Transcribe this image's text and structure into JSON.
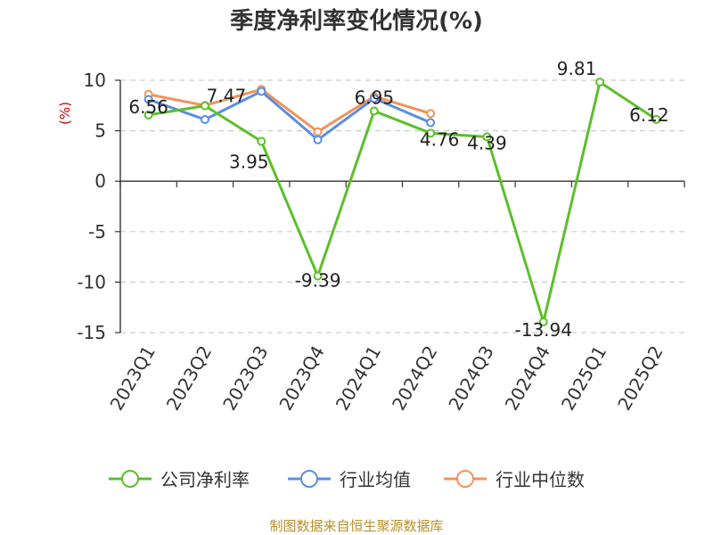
{
  "chart_data": {
    "type": "line",
    "title": "季度净利率变化情况(%)",
    "y_unit": "(%)",
    "categories": [
      "2023Q1",
      "2023Q2",
      "2023Q3",
      "2023Q4",
      "2024Q1",
      "2024Q2",
      "2024Q3",
      "2024Q4",
      "2025Q1",
      "2025Q2"
    ],
    "ylim": [
      -15,
      10
    ],
    "yticks": [
      10,
      5,
      0,
      -5,
      -10,
      -15
    ],
    "grid": true,
    "legend_position": "bottom",
    "series": [
      {
        "name": "公司净利率",
        "color": "#5cbf2a",
        "values": [
          6.56,
          7.47,
          3.95,
          -9.39,
          6.95,
          4.76,
          4.39,
          -13.94,
          9.81,
          6.12
        ],
        "labels": [
          "6.56",
          "7.47",
          "3.95",
          "-9.39",
          "6.95",
          "4.76",
          "4.39",
          "-13.94",
          "9.81",
          "6.12"
        ]
      },
      {
        "name": "行业均值",
        "color": "#5b8ee0",
        "values": [
          8.1,
          6.1,
          8.9,
          4.1,
          8.2,
          5.8,
          null,
          null,
          null,
          null
        ]
      },
      {
        "name": "行业中位数",
        "color": "#f2935a",
        "values": [
          8.6,
          7.5,
          9.1,
          4.9,
          8.4,
          6.7,
          null,
          null,
          null,
          null
        ]
      }
    ],
    "source": "制图数据来自恒生聚源数据库"
  }
}
